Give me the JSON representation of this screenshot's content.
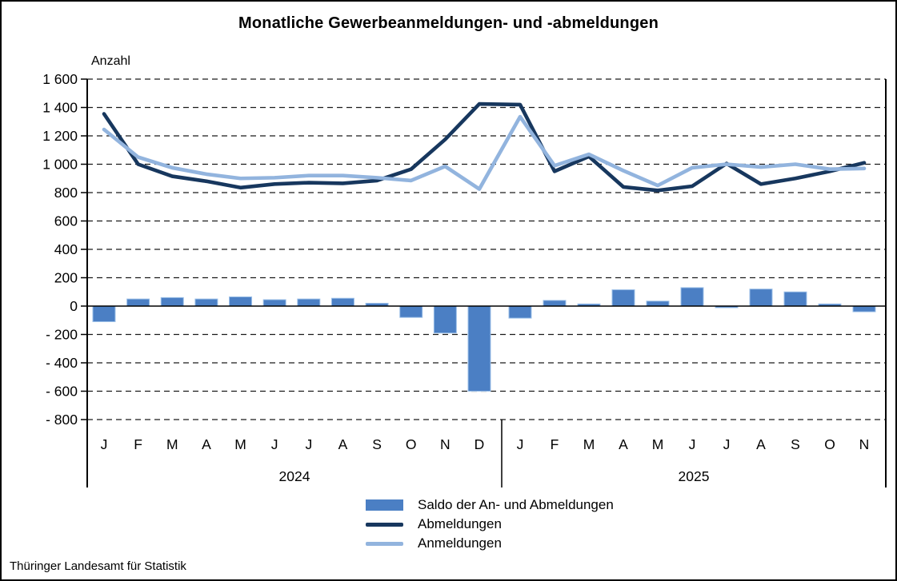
{
  "title": "Monatliche Gewerbeanmeldungen- und -abmeldungen",
  "footer": "Thüringer Landesamt für Statistik",
  "chart_data": {
    "type": "bar+line",
    "title": "Monatliche Gewerbeanmeldungen- und -abmeldungen",
    "ylabel": "Anzahl",
    "grid": "dashed-horizontal",
    "legend_position": "bottom",
    "y_axis": {
      "max": 1600,
      "min": -800,
      "step": 200,
      "tick_labels": [
        "1 600",
        "1 400",
        "1 200",
        "1 000",
        "800",
        "600",
        "400",
        "200",
        "0",
        "- 200",
        "- 400",
        "- 600",
        "- 800"
      ]
    },
    "groups": [
      {
        "year": "2024",
        "months": [
          "J",
          "F",
          "M",
          "A",
          "M",
          "J",
          "J",
          "A",
          "S",
          "O",
          "N",
          "D"
        ]
      },
      {
        "year": "2025",
        "months": [
          "J",
          "F",
          "M",
          "A",
          "M",
          "J",
          "J",
          "A",
          "S",
          "O",
          "N"
        ]
      }
    ],
    "series": [
      {
        "name": "Saldo der An- und Abmeldungen",
        "type": "bar",
        "color": "#4b7fc4",
        "edge_color": "#9cc0e8",
        "values": [
          -110,
          50,
          60,
          50,
          65,
          45,
          50,
          55,
          20,
          -80,
          -190,
          -600,
          -85,
          40,
          15,
          115,
          35,
          130,
          -5,
          120,
          100,
          15,
          -40
        ]
      },
      {
        "name": "Abmeldungen",
        "type": "line",
        "color": "#17375e",
        "values": [
          1355,
          1000,
          915,
          880,
          835,
          860,
          870,
          865,
          885,
          965,
          1175,
          1425,
          1420,
          950,
          1055,
          840,
          815,
          845,
          1005,
          860,
          900,
          950,
          1010
        ]
      },
      {
        "name": "Anmeldungen",
        "type": "line",
        "color": "#92b4de",
        "values": [
          1245,
          1050,
          975,
          930,
          900,
          905,
          920,
          920,
          905,
          885,
          985,
          825,
          1335,
          990,
          1070,
          955,
          850,
          975,
          1000,
          980,
          1000,
          965,
          970
        ]
      }
    ]
  }
}
